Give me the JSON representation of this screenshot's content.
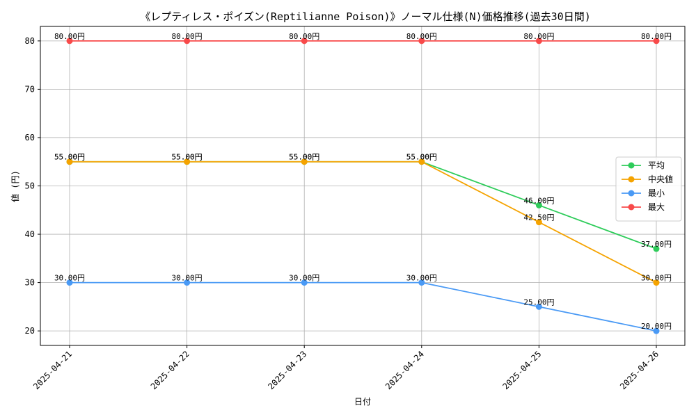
{
  "chart_data": {
    "type": "line",
    "title": "《レプティレス・ポイズン(Reptilianne Poison)》ノーマル仕様(N)価格推移(過去30日間)",
    "xlabel": "日付",
    "ylabel": "値 (円)",
    "categories": [
      "2025-04-21",
      "2025-04-22",
      "2025-04-23",
      "2025-04-24",
      "2025-04-25",
      "2025-04-26"
    ],
    "ylim": [
      17,
      83
    ],
    "yticks": [
      20,
      30,
      40,
      50,
      60,
      70,
      80
    ],
    "grid": true,
    "legend_position": "center-right",
    "series": [
      {
        "name": "平均",
        "color": "#2ecc5a",
        "values": [
          55,
          55,
          55,
          55,
          46,
          37
        ],
        "labels": [
          "55.00円",
          "55.00円",
          "55.00円",
          "55.00円",
          "46.00円",
          "37.00円"
        ]
      },
      {
        "name": "中央値",
        "color": "#f5a300",
        "values": [
          55,
          55,
          55,
          55,
          42.5,
          30
        ],
        "labels": [
          "55.00円",
          "55.00円",
          "55.00円",
          "55.00円",
          "42.50円",
          "30.00円"
        ]
      },
      {
        "name": "最小",
        "color": "#4a9af5",
        "values": [
          30,
          30,
          30,
          30,
          25,
          20
        ],
        "labels": [
          "30.00円",
          "30.00円",
          "30.00円",
          "30.00円",
          "25.00円",
          "20.00円"
        ]
      },
      {
        "name": "最大",
        "color": "#f84a4a",
        "values": [
          80,
          80,
          80,
          80,
          80,
          80
        ],
        "labels": [
          "80.00円",
          "80.00円",
          "80.00円",
          "80.00円",
          "80.00円",
          "80.00円"
        ]
      }
    ]
  }
}
